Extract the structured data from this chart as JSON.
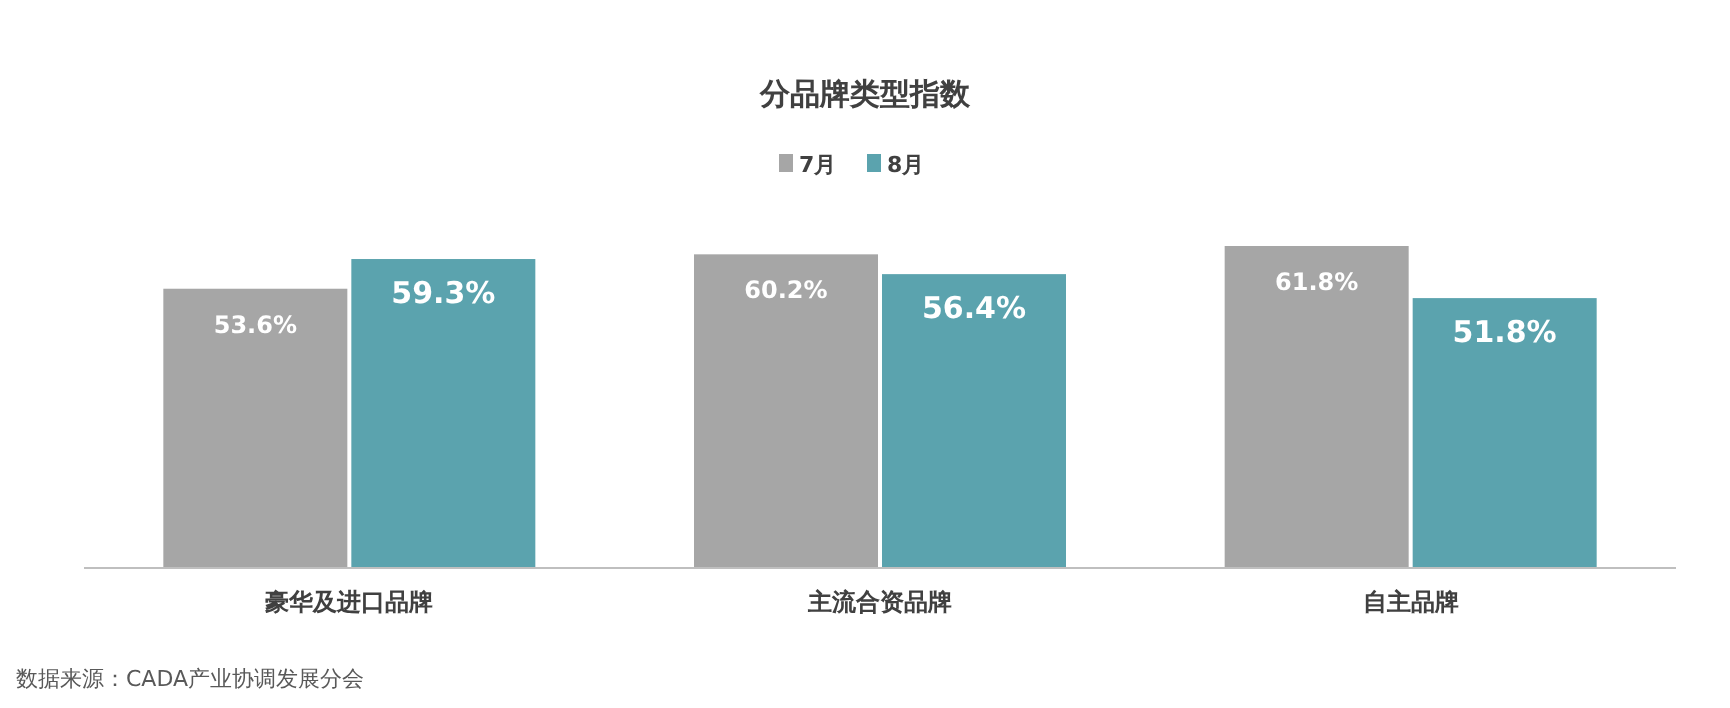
{
  "chart_data": {
    "type": "bar",
    "title": "分品牌类型指数",
    "categories": [
      "豪华及进口品牌",
      "主流合资品牌",
      "自主品牌"
    ],
    "series": [
      {
        "name": "7月",
        "color": "#a6a6a6",
        "values": [
          53.6,
          60.2,
          61.8
        ],
        "value_labels": [
          "53.6%",
          "60.2%",
          "61.8%"
        ]
      },
      {
        "name": "8月",
        "color": "#5ba3ae",
        "values": [
          59.3,
          56.4,
          51.8
        ],
        "value_labels": [
          "59.3%",
          "56.4%",
          "51.8%"
        ]
      }
    ],
    "legend": "top",
    "grid": false,
    "annotations": [
      "数据来源：CADA产业协调发展分会"
    ]
  }
}
